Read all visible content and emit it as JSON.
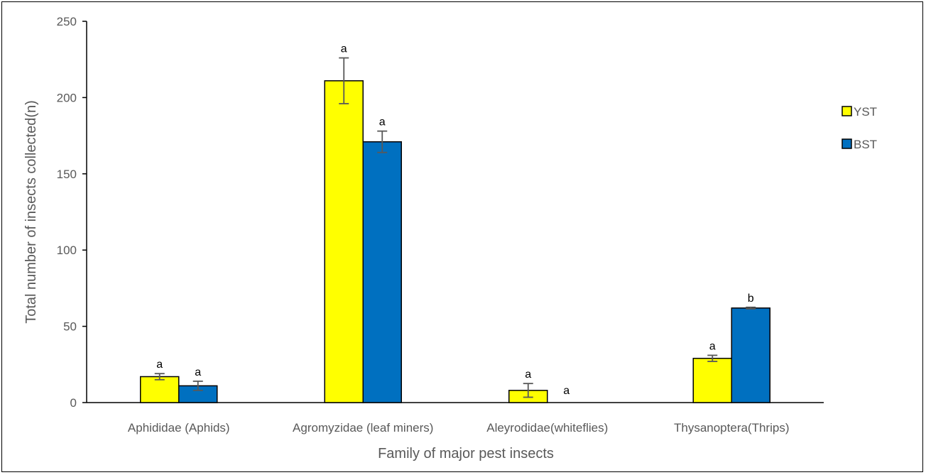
{
  "chart_data": {
    "type": "bar",
    "title": "",
    "xlabel": "Family of major pest insects",
    "ylabel": "Total number of insects collected(n)",
    "ylim": [
      0,
      250
    ],
    "yticks": [
      0,
      50,
      100,
      150,
      200,
      250
    ],
    "grid": false,
    "legend_position": "right",
    "categories": [
      "Aphididae (Aphids)",
      "Agromyzidae (leaf miners)",
      "Aleyrodidae(whiteflies)",
      "Thysanoptera(Thrips)"
    ],
    "series": [
      {
        "name": "YST",
        "color": "#ffff00",
        "values": [
          17,
          211,
          8,
          29
        ],
        "errors": [
          2,
          15,
          4.5,
          2
        ],
        "labels": [
          "a",
          "a",
          "a",
          "a"
        ]
      },
      {
        "name": "BST",
        "color": "#0070c0",
        "values": [
          11,
          171,
          0,
          62
        ],
        "errors": [
          3,
          7,
          0,
          0.5
        ],
        "labels": [
          "a",
          "a",
          "a",
          "b"
        ]
      }
    ]
  }
}
